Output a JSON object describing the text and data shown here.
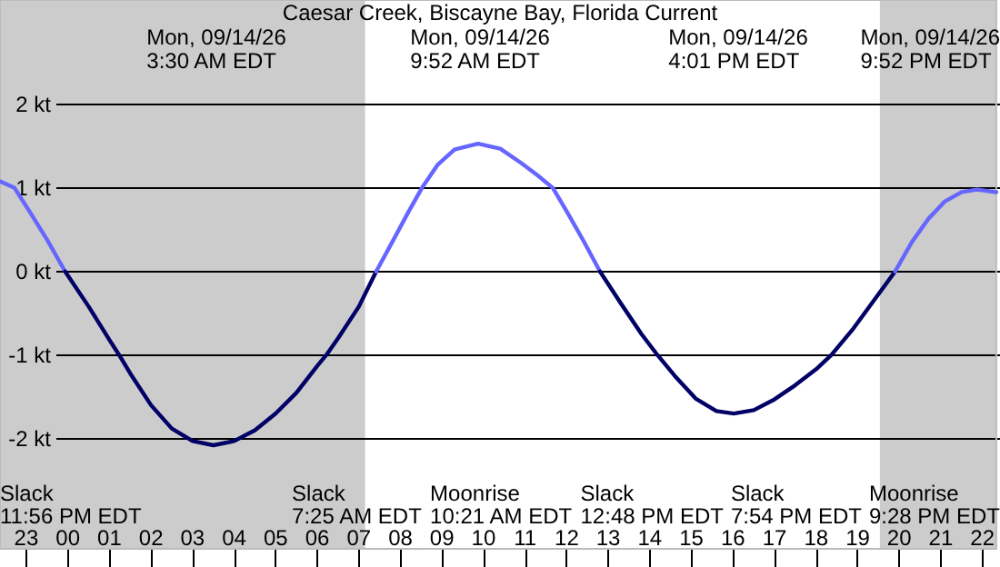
{
  "chart_data": {
    "type": "line",
    "title": "Caesar Creek, Biscayne Bay, Florida Current",
    "xlim": [
      "--09-13T22:22",
      "--09-14T22:20"
    ],
    "ylim": [
      -3.32,
      3.25
    ],
    "xticks": [
      {
        "value": "--09-13T23:00",
        "label": "23"
      },
      {
        "value": "--09-14T00:00",
        "label": "00"
      },
      {
        "value": "--09-14T01:00",
        "label": "01"
      },
      {
        "value": "--09-14T02:00",
        "label": "02"
      },
      {
        "value": "--09-14T03:00",
        "label": "03"
      },
      {
        "value": "--09-14T04:00",
        "label": "04"
      },
      {
        "value": "--09-14T05:00",
        "label": "05"
      },
      {
        "value": "--09-14T06:00",
        "label": "06"
      },
      {
        "value": "--09-14T07:00",
        "label": "07"
      },
      {
        "value": "--09-14T08:00",
        "label": "08"
      },
      {
        "value": "--09-14T09:00",
        "label": "09"
      },
      {
        "value": "--09-14T10:00",
        "label": "10"
      },
      {
        "value": "--09-14T11:00",
        "label": "11"
      },
      {
        "value": "--09-14T12:00",
        "label": "12"
      },
      {
        "value": "--09-14T13:00",
        "label": "13"
      },
      {
        "value": "--09-14T14:00",
        "label": "14"
      },
      {
        "value": "--09-14T15:00",
        "label": "15"
      },
      {
        "value": "--09-14T16:00",
        "label": "16"
      },
      {
        "value": "--09-14T17:00",
        "label": "17"
      },
      {
        "value": "--09-14T18:00",
        "label": "18"
      },
      {
        "value": "--09-14T19:00",
        "label": "19"
      },
      {
        "value": "--09-14T20:00",
        "label": "20"
      },
      {
        "value": "--09-14T21:00",
        "label": "21"
      },
      {
        "value": "--09-14T22:00",
        "label": "22"
      }
    ],
    "yticks": [
      {
        "value": -2,
        "label": "-2 kt"
      },
      {
        "value": -1,
        "label": "-1 kt"
      },
      {
        "value": 0,
        "label": "0 kt"
      },
      {
        "value": 1,
        "label": "1 kt"
      },
      {
        "value": 2,
        "label": "2 kt"
      }
    ],
    "grid": "y",
    "marker": "none",
    "line_style": "solid",
    "series": [
      {
        "color": "#6666ff",
        "x": [
          "--09-13T22:22",
          "--09-13T22:43",
          "--09-13T23:06",
          "--09-13T23:30",
          "--09-13T23:56"
        ],
        "values": [
          1.08,
          1.0,
          0.7,
          0.38,
          0
        ]
      },
      {
        "color": "#000066",
        "x": [
          "--09-13T23:56",
          "--09-14T00:30",
          "--09-14T01:00",
          "--09-14T01:14",
          "--09-14T01:30",
          "--09-14T02:00",
          "--09-14T02:30",
          "--09-14T03:00",
          "--09-14T03:30",
          "--09-14T04:00",
          "--09-14T04:30",
          "--09-14T05:00",
          "--09-14T05:30",
          "--09-14T06:00",
          "--09-14T06:13",
          "--09-14T06:30",
          "--09-14T07:00",
          "--09-14T07:25"
        ],
        "values": [
          0,
          -0.42,
          -0.82,
          -1.0,
          -1.22,
          -1.6,
          -1.88,
          -2.03,
          -2.08,
          -2.03,
          -1.9,
          -1.7,
          -1.45,
          -1.13,
          -1.0,
          -0.8,
          -0.42,
          0
        ]
      },
      {
        "color": "#6666ff",
        "x": [
          "--09-14T07:25",
          "--09-14T07:48",
          "--09-14T08:12",
          "--09-14T08:31",
          "--09-14T08:54",
          "--09-14T09:18",
          "--09-14T09:52",
          "--09-14T10:24",
          "--09-14T10:54",
          "--09-14T11:18",
          "--09-14T11:40",
          "--09-14T12:00",
          "--09-14T12:24",
          "--09-14T12:48"
        ],
        "values": [
          0,
          0.35,
          0.72,
          1.0,
          1.28,
          1.46,
          1.53,
          1.47,
          1.3,
          1.15,
          1.0,
          0.72,
          0.37,
          0
        ]
      },
      {
        "color": "#000066",
        "x": [
          "--09-14T12:48",
          "--09-14T13:18",
          "--09-14T13:48",
          "--09-14T14:11",
          "--09-14T14:36",
          "--09-14T15:06",
          "--09-14T15:36",
          "--09-14T16:01",
          "--09-14T16:30",
          "--09-14T17:00",
          "--09-14T17:30",
          "--09-14T18:00",
          "--09-14T18:22",
          "--09-14T18:54",
          "--09-14T19:24",
          "--09-14T19:54"
        ],
        "values": [
          0,
          -0.38,
          -0.75,
          -1.0,
          -1.25,
          -1.52,
          -1.67,
          -1.7,
          -1.66,
          -1.53,
          -1.36,
          -1.17,
          -1.0,
          -0.68,
          -0.34,
          0
        ]
      },
      {
        "color": "#6666ff",
        "x": [
          "--09-14T19:54",
          "--09-14T20:18",
          "--09-14T20:42",
          "--09-14T21:06",
          "--09-14T21:30",
          "--09-14T21:52",
          "--09-14T22:20"
        ],
        "values": [
          0,
          0.35,
          0.63,
          0.84,
          0.95,
          0.98,
          0.95
        ]
      }
    ],
    "bands": [
      {
        "axis": "x",
        "from": "--09-13T22:22",
        "to": "--09-14T07:09",
        "color": "#cccccc"
      },
      {
        "axis": "x",
        "from": "--09-14T19:32",
        "to": "--09-14T22:20",
        "color": "#cccccc"
      }
    ],
    "annotations": [
      "Mon, 09/14/26\n3:30 AM EDT",
      "Mon, 09/14/26\n9:52 AM EDT",
      "Mon, 09/14/26\n4:01 PM EDT",
      "Mon, 09/14/26\n9:52 PM EDT",
      "Slack\n11:56 PM EDT",
      "Slack\n7:25 AM EDT",
      "Moonrise\n10:21 AM EDT",
      "Slack\n12:48 PM EDT",
      "Slack\n7:54 PM EDT",
      "Moonrise\n9:28 PM EDT"
    ]
  }
}
